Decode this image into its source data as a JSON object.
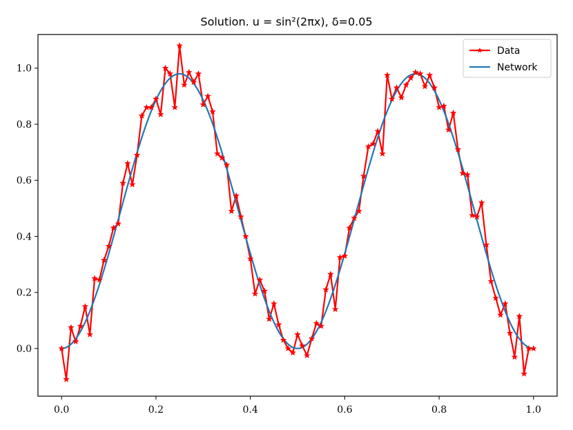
{
  "chart_data": {
    "type": "line",
    "title": "Solution. u = sin²(2πx), δ=0.05",
    "xlabel": "",
    "ylabel": "",
    "xlim": [
      -0.05,
      1.05
    ],
    "ylim": [
      -0.17,
      1.12
    ],
    "xticks": [
      0.0,
      0.2,
      0.4,
      0.6,
      0.8,
      1.0
    ],
    "xtick_labels": [
      "0.0",
      "0.2",
      "0.4",
      "0.6",
      "0.8",
      "1.0"
    ],
    "yticks": [
      0.0,
      0.2,
      0.4,
      0.6,
      0.8,
      1.0
    ],
    "ytick_labels": [
      "0.0",
      "0.2",
      "0.4",
      "0.6",
      "0.8",
      "1.0"
    ],
    "grid": false,
    "legend_position": "top-right",
    "series": [
      {
        "name": "Data",
        "color": "#ff0000",
        "marker": "star",
        "x": [
          0.0,
          0.01,
          0.02,
          0.03,
          0.04,
          0.05,
          0.06,
          0.07,
          0.08,
          0.09,
          0.1,
          0.11,
          0.12,
          0.13,
          0.14,
          0.15,
          0.16,
          0.17,
          0.18,
          0.19,
          0.2,
          0.21,
          0.22,
          0.23,
          0.24,
          0.25,
          0.26,
          0.27,
          0.28,
          0.29,
          0.3,
          0.31,
          0.32,
          0.33,
          0.34,
          0.35,
          0.36,
          0.37,
          0.38,
          0.39,
          0.4,
          0.41,
          0.42,
          0.43,
          0.44,
          0.45,
          0.46,
          0.47,
          0.48,
          0.49,
          0.5,
          0.51,
          0.52,
          0.53,
          0.54,
          0.55,
          0.56,
          0.57,
          0.58,
          0.59,
          0.6,
          0.61,
          0.62,
          0.63,
          0.64,
          0.65,
          0.66,
          0.67,
          0.68,
          0.69,
          0.7,
          0.71,
          0.72,
          0.73,
          0.74,
          0.75,
          0.76,
          0.77,
          0.78,
          0.79,
          0.8,
          0.81,
          0.82,
          0.83,
          0.84,
          0.85,
          0.86,
          0.87,
          0.88,
          0.89,
          0.9,
          0.91,
          0.92,
          0.93,
          0.94,
          0.95,
          0.96,
          0.97,
          0.98,
          0.99,
          1.0
        ],
        "y": [
          0.0,
          -0.11,
          0.075,
          0.025,
          0.08,
          0.15,
          0.05,
          0.25,
          0.245,
          0.315,
          0.365,
          0.43,
          0.445,
          0.59,
          0.66,
          0.585,
          0.69,
          0.83,
          0.86,
          0.86,
          0.89,
          0.835,
          1.0,
          0.98,
          0.86,
          1.08,
          0.94,
          0.985,
          0.95,
          0.98,
          0.87,
          0.9,
          0.845,
          0.695,
          0.68,
          0.655,
          0.49,
          0.545,
          0.47,
          0.4,
          0.32,
          0.195,
          0.245,
          0.205,
          0.105,
          0.16,
          0.085,
          0.03,
          0.0,
          -0.015,
          0.05,
          0.01,
          -0.025,
          0.035,
          0.09,
          0.08,
          0.21,
          0.265,
          0.14,
          0.325,
          0.33,
          0.43,
          0.465,
          0.49,
          0.615,
          0.72,
          0.73,
          0.775,
          0.695,
          0.975,
          0.89,
          0.93,
          0.895,
          0.94,
          0.965,
          0.985,
          0.98,
          0.935,
          0.975,
          0.93,
          0.86,
          0.865,
          0.78,
          0.84,
          0.71,
          0.625,
          0.62,
          0.475,
          0.47,
          0.52,
          0.37,
          0.24,
          0.18,
          0.12,
          0.16,
          0.055,
          -0.03,
          0.115,
          -0.09,
          0.0,
          0.0
        ]
      },
      {
        "name": "Network",
        "color": "#1f77b4",
        "function": "sin2(2*pi*x)",
        "amplitude": 0.98,
        "baseline": 0.0,
        "samples": 201
      }
    ]
  }
}
